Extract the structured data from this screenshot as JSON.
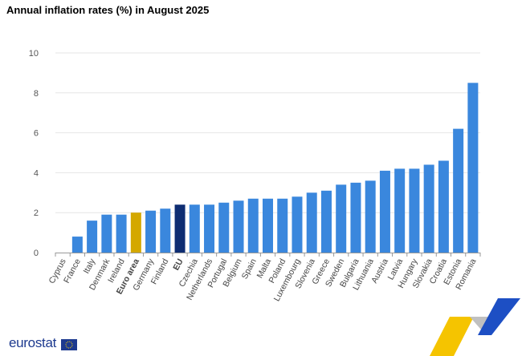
{
  "chart_data": {
    "type": "bar",
    "title": "Annual inflation rates (%) in August 2025",
    "categories": [
      "Cyprus",
      "France",
      "Italy",
      "Denmark",
      "Ireland",
      "Euro area",
      "Germany",
      "Finland",
      "EU",
      "Czechia",
      "Netherlands",
      "Portugal",
      "Belgium",
      "Spain",
      "Malta",
      "Poland",
      "Luxembourg",
      "Slovenia",
      "Greece",
      "Sweden",
      "Bulgaria",
      "Lithuania",
      "Austria",
      "Latvia",
      "Hungary",
      "Slovakia",
      "Croatia",
      "Estonia",
      "Romania"
    ],
    "values": [
      0.0,
      0.8,
      1.6,
      1.9,
      1.9,
      2.0,
      2.1,
      2.2,
      2.4,
      2.4,
      2.4,
      2.5,
      2.6,
      2.7,
      2.7,
      2.7,
      2.8,
      3.0,
      3.1,
      3.4,
      3.5,
      3.6,
      4.1,
      4.2,
      4.2,
      4.4,
      4.6,
      6.2,
      8.5
    ],
    "ylim": [
      0,
      10
    ],
    "yticks": [
      0,
      2,
      4,
      6,
      8,
      10
    ],
    "grid": true,
    "colors": {
      "default": "#3a87dd",
      "Euro area": "#d4a800",
      "EU": "#0e2d72"
    },
    "bold_categories": [
      "Euro area",
      "EU"
    ]
  },
  "footer": {
    "logo": "eurostat"
  }
}
